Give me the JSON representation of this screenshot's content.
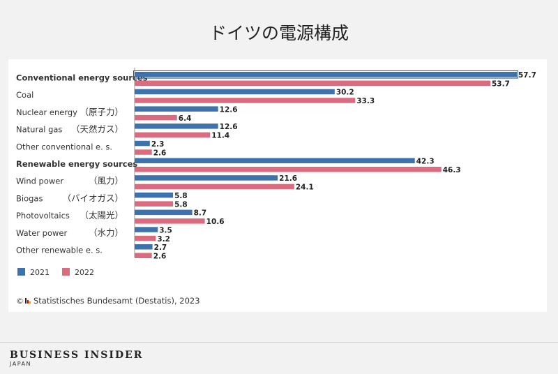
{
  "title": "ドイツの電源構成",
  "source": "Statistisches Bundesamt (Destatis), 2023",
  "brand": {
    "name": "BUSINESS INSIDER",
    "sub": "JAPAN"
  },
  "colors": {
    "s2021": "#3e72ad",
    "s2022": "#db6b7e",
    "text": "#333333"
  },
  "chart_data": {
    "type": "bar",
    "orientation": "horizontal",
    "categories": [
      {
        "label": "Conventional energy sources",
        "jp": "",
        "bold": true
      },
      {
        "label": "Coal",
        "jp": "",
        "bold": false
      },
      {
        "label": "Nuclear energy",
        "jp": "（原子力）",
        "bold": false
      },
      {
        "label": "Natural gas",
        "jp": "（天然ガス）",
        "bold": false
      },
      {
        "label": "Other conventional e. s.",
        "jp": "",
        "bold": false
      },
      {
        "label": "Renewable energy sources",
        "jp": "",
        "bold": true
      },
      {
        "label": "Wind power",
        "jp": "（風力）",
        "bold": false
      },
      {
        "label": "Biogas",
        "jp": "（バイオガス）",
        "bold": false
      },
      {
        "label": "Photovoltaics",
        "jp": "（太陽光）",
        "bold": false
      },
      {
        "label": "Water power",
        "jp": "（水力）",
        "bold": false
      },
      {
        "label": "Other renewable e. s.",
        "jp": "",
        "bold": false
      }
    ],
    "series": [
      {
        "name": "2021",
        "values": [
          57.7,
          30.2,
          12.6,
          12.6,
          2.3,
          42.3,
          21.6,
          5.8,
          8.7,
          3.5,
          2.7
        ]
      },
      {
        "name": "2022",
        "values": [
          53.7,
          33.3,
          6.4,
          11.4,
          2.6,
          46.3,
          24.1,
          5.8,
          10.6,
          3.2,
          2.6
        ]
      }
    ],
    "xlim": [
      0,
      57.7
    ],
    "highlighted_bar": {
      "series": 0,
      "category": 0
    },
    "legend_position": "bottom-left"
  }
}
